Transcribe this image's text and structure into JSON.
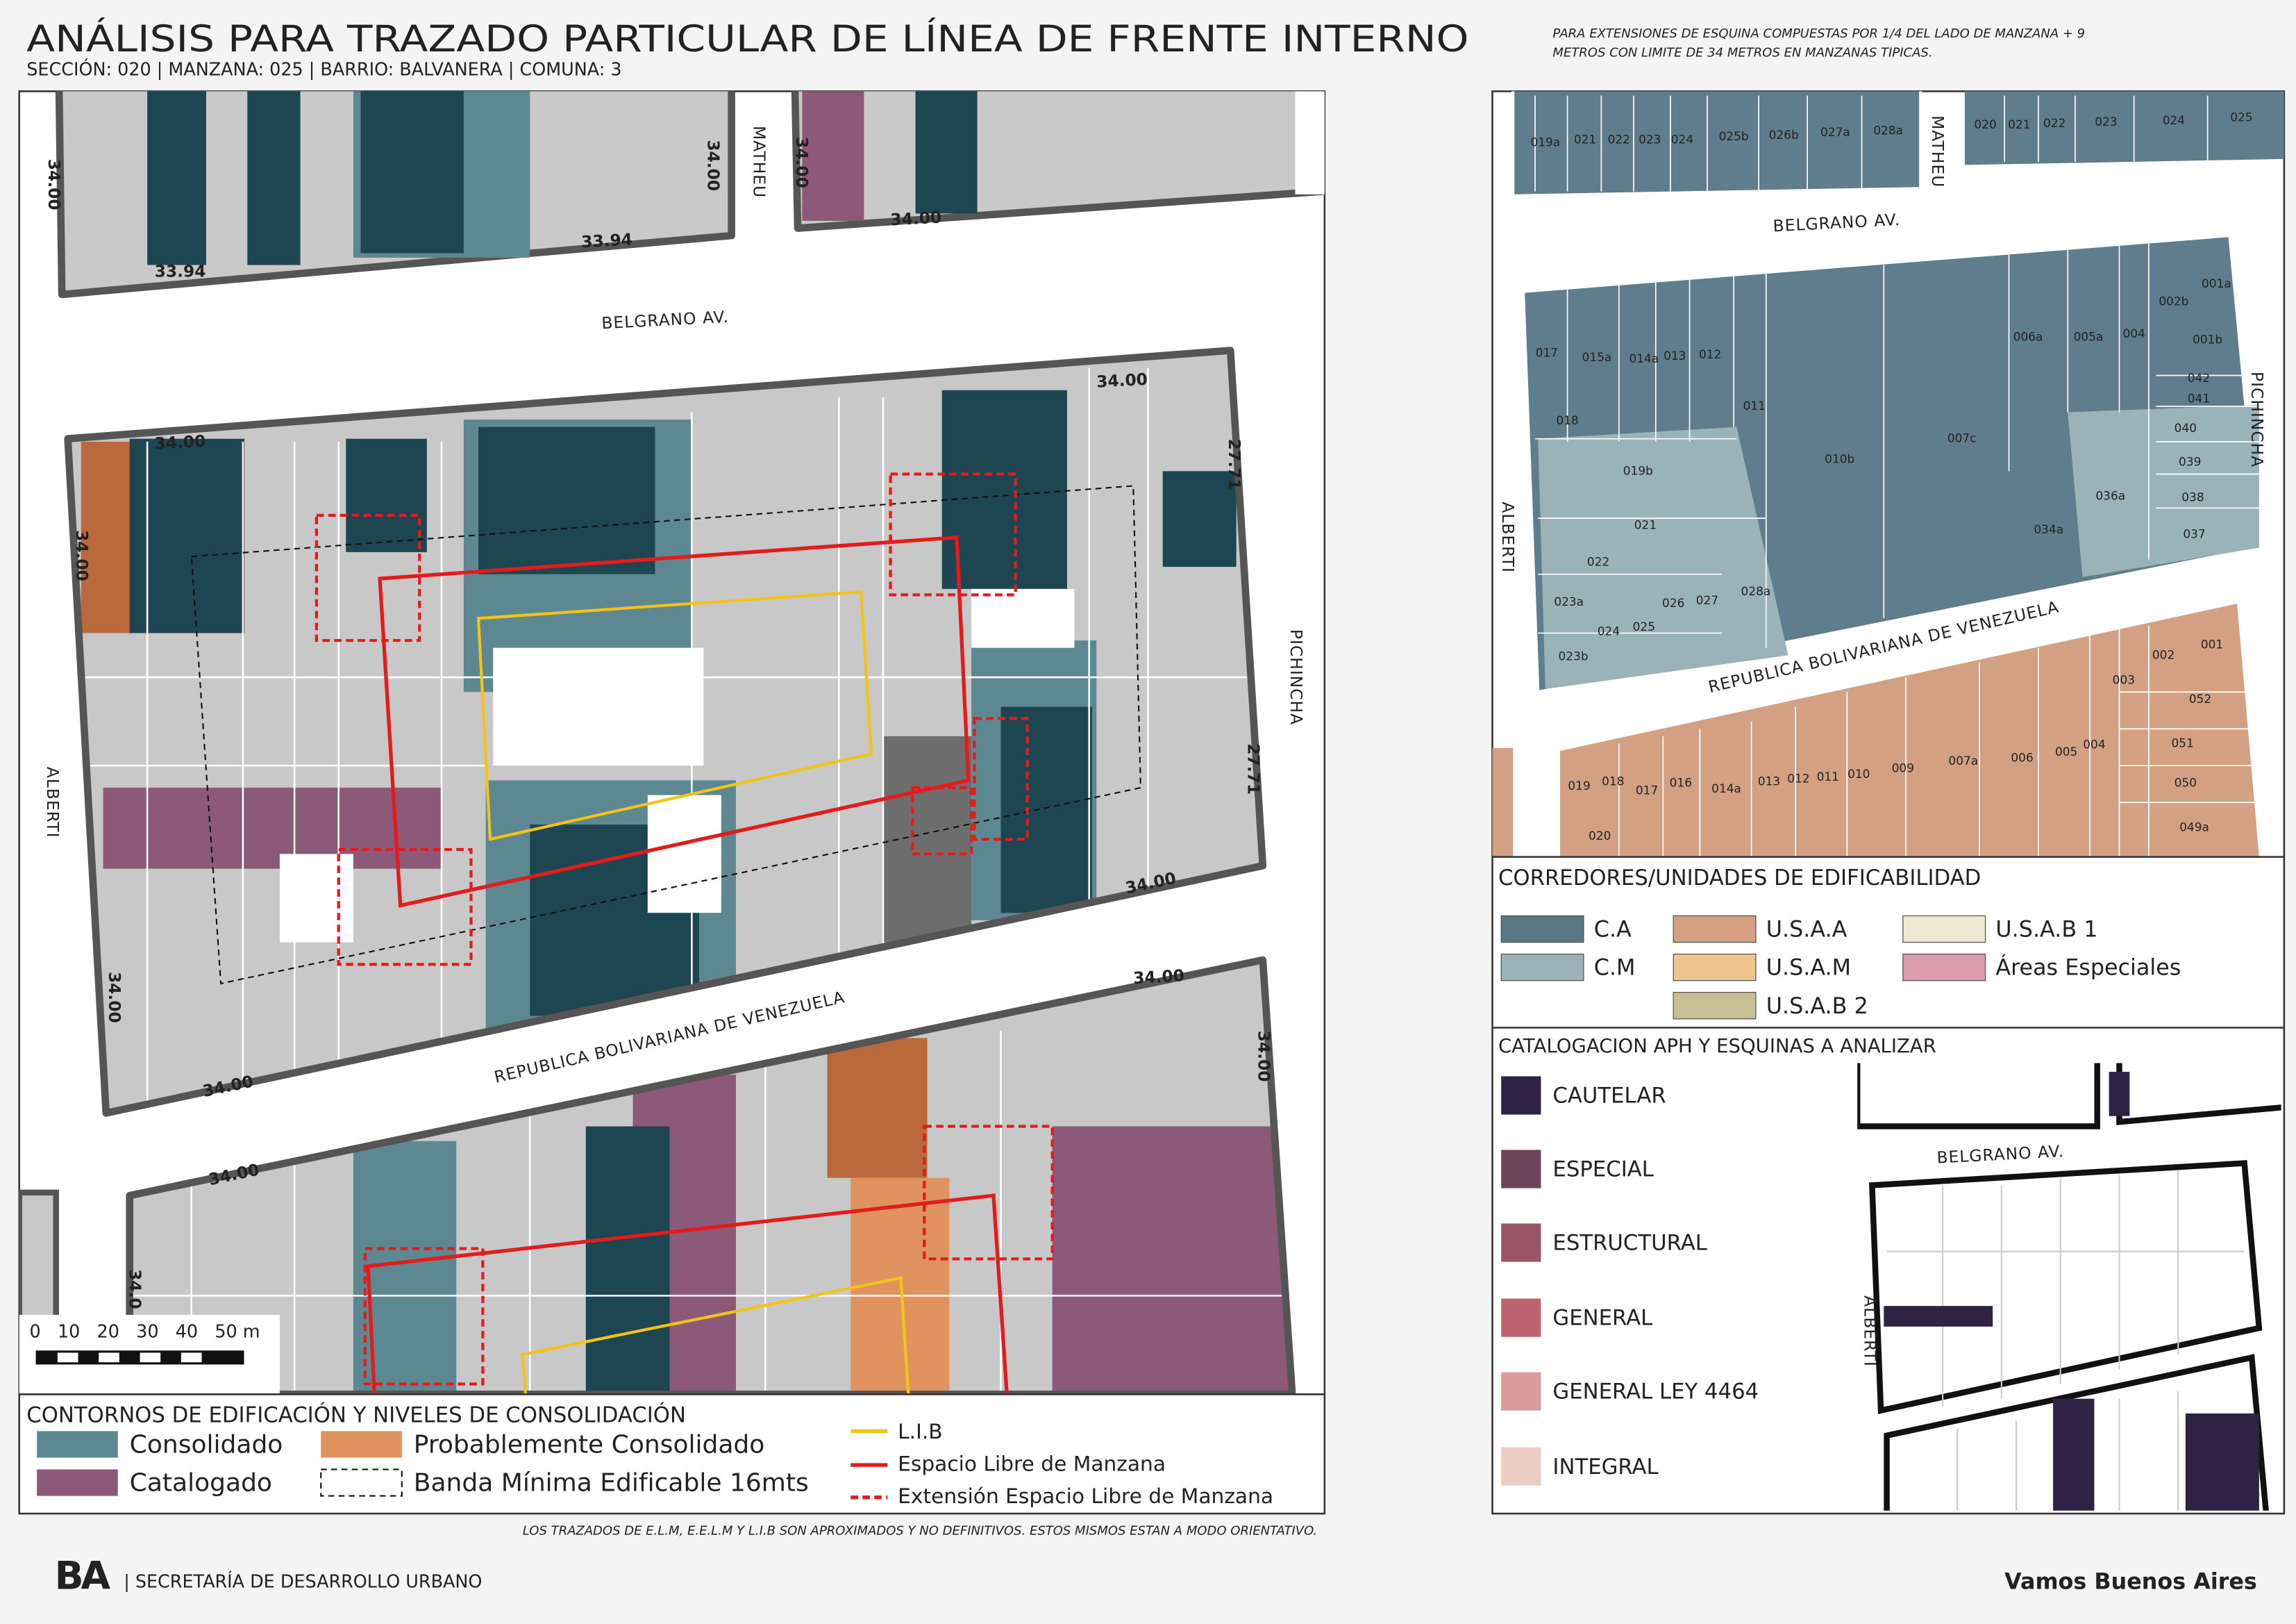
{
  "header": {
    "title": "ANÁLISIS PARA TRAZADO PARTICULAR DE LÍNEA DE FRENTE INTERNO",
    "subtitle": "SECCIÓN: 020 |  MANZANA: 025 | BARRIO: BALVANERA | COMUNA: 3",
    "note": [
      "PARA EXTENSIONES DE ESQUINA COMPUESTAS POR 1/4 DEL LADO DE MANZANA + 9",
      "METROS CON LIMITE DE 34 METROS EN MANZANAS TIPICAS."
    ]
  },
  "left_map": {
    "streets": [
      "MATHEU",
      "BELGRANO AV.",
      "PICHINCHA",
      "ALBERTI",
      "REPUBLICA BOLIVARIANA DE VENEZUELA"
    ],
    "dimension_labels": [
      "34.00",
      "33.94",
      "33.94",
      "34.00",
      "34.00",
      "34.00",
      "34.00",
      "34.00",
      "27.71",
      "34.00",
      "27.71",
      "34.00",
      "34.00",
      "34.00",
      "34.00",
      "34.00",
      "34.00",
      "34.0"
    ],
    "scale_label": "0   10   20   30   40   50 m"
  },
  "left_legend": {
    "title": "CONTORNOS DE EDIFICACIÓN Y NIVELES DE CONSOLIDACIÓN",
    "items": [
      "Consolidado",
      "Probablemente Consolidado",
      "Catalogado",
      "Banda Mínima Edificable 16mts",
      "L.I.B",
      "Espacio Libre de Manzana",
      "Extensión Espacio Libre de Manzana"
    ]
  },
  "disclaimer": "LOS TRAZADOS DE E.L.M, E.E.L.M Y L.I.B SON APROXIMADOS Y NO DEFINITIVOS. ESTOS MISMOS ESTAN A MODO ORIENTATIVO.",
  "right_map": {
    "streets": [
      "MATHEU",
      "BELGRANO AV.",
      "ALBERTI",
      "PICHINCHA",
      "REPUBLICA BOLIVARIANA DE VENEZUELA"
    ],
    "parcels": [
      "019a",
      "021",
      "022",
      "023",
      "024",
      "025b",
      "026b",
      "027a",
      "028a",
      "020",
      "021",
      "022",
      "023",
      "024",
      "025",
      "017",
      "015a",
      "014a",
      "013",
      "012",
      "011",
      "010b",
      "007c",
      "006a",
      "005a",
      "004",
      "002b",
      "001a",
      "001b",
      "042",
      "041",
      "040",
      "039",
      "038",
      "037",
      "036a",
      "034a",
      "018",
      "019b",
      "021",
      "022",
      "023a",
      "024",
      "025",
      "026",
      "027",
      "028a",
      "023b",
      "019",
      "018",
      "017",
      "016",
      "014a",
      "013",
      "012",
      "011",
      "010",
      "009",
      "007a",
      "006",
      "005",
      "004",
      "003",
      "002",
      "001",
      "052",
      "051",
      "050",
      "049a",
      "020"
    ]
  },
  "corridors_legend": {
    "title": "CORREDORES/UNIDADES DE EDIFICABILIDAD",
    "items": [
      "C.A",
      "U.S.A.A",
      "U.S.A.B 1",
      "C.M",
      "U.S.A.M",
      "Áreas Especiales",
      "U.S.A.B 2"
    ]
  },
  "catalog_legend": {
    "title": "CATALOGACION APH Y ESQUINAS A ANALIZAR",
    "items": [
      "CAUTELAR",
      "ESPECIAL",
      "ESTRUCTURAL",
      "GENERAL",
      "GENERAL LEY 4464",
      "INTEGRAL"
    ],
    "inset_streets": [
      "BELGRANO AV.",
      "ALBERTI"
    ]
  },
  "footer": {
    "logo": "BA",
    "agency": "| SECRETARÍA DE DESARROLLO URBANO",
    "slogan": "Vamos Buenos Aires"
  }
}
